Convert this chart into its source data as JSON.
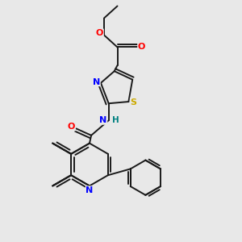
{
  "bg_color": "#e8e8e8",
  "bond_color": "#1a1a1a",
  "atom_colors": {
    "N": "#0000ff",
    "O": "#ff0000",
    "S": "#ccaa00",
    "H": "#008080",
    "C": "#1a1a1a"
  },
  "lw": 1.4
}
